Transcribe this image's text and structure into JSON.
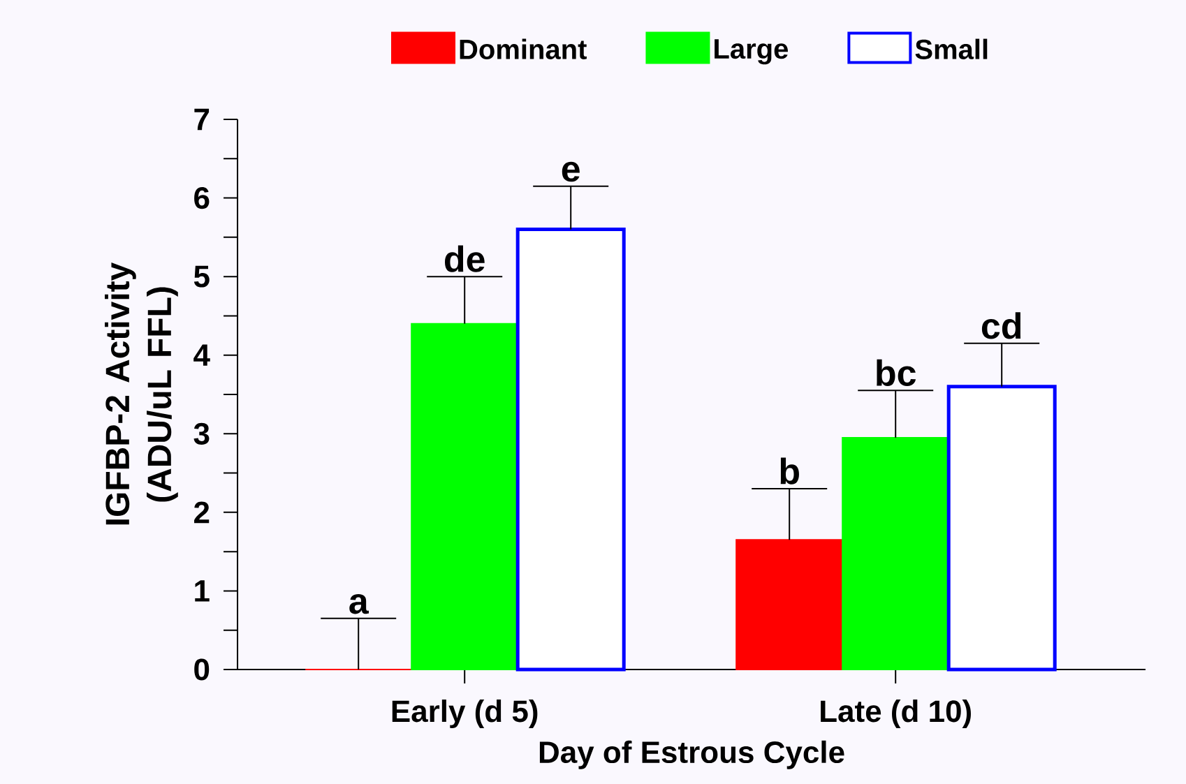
{
  "chart_data": {
    "type": "bar",
    "xlabel": "Day of Estrous Cycle",
    "ylabel": "IGFBP-2 Activity (ADU/uL FFL)",
    "categories": [
      "Early (d 5)",
      "Late (d 10)"
    ],
    "series": [
      {
        "name": "Dominant",
        "color": "#ff0000",
        "values": [
          0,
          1.65
        ],
        "errors": [
          0.65,
          0.65
        ]
      },
      {
        "name": "Large",
        "color": "#00ff00",
        "values": [
          4.4,
          2.95
        ],
        "errors": [
          0.6,
          0.6
        ]
      },
      {
        "name": "Small",
        "color": "#0000ff",
        "values": [
          5.6,
          3.6
        ],
        "errors": [
          0.55,
          0.55
        ]
      }
    ],
    "ylim": [
      0,
      7
    ],
    "yticks": [
      0,
      1,
      2,
      3,
      4,
      5,
      6,
      7
    ],
    "legend": "top",
    "annotations": [
      "a",
      "de",
      "e",
      "b",
      "bc",
      "cd"
    ]
  }
}
